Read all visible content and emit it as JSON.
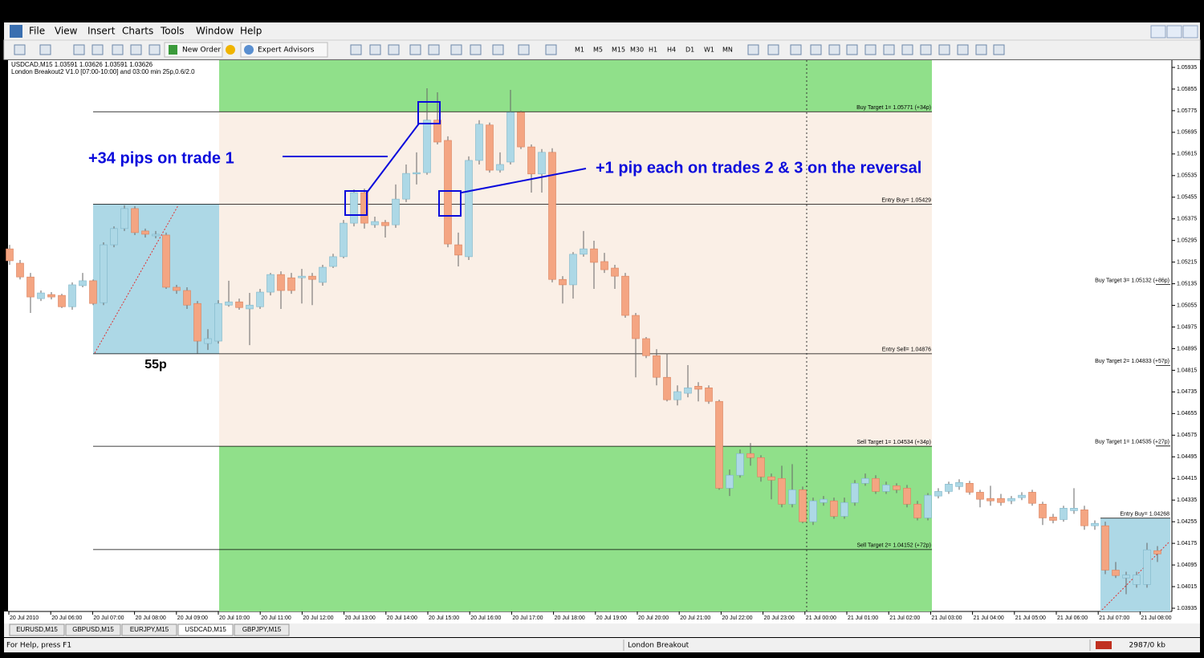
{
  "menu": [
    "File",
    "View",
    "Insert",
    "Charts",
    "Tools",
    "Window",
    "Help"
  ],
  "toolbar": {
    "new_order": "New Order",
    "expert_advisors": "Expert Advisors",
    "timeframes": [
      "M1",
      "M5",
      "M15",
      "M30",
      "H1",
      "H4",
      "D1",
      "W1",
      "MN"
    ]
  },
  "chart": {
    "info_line": "USDCAD,M15  1.03591 1.03626 1.03591 1.03626",
    "indicator_line": "London Breakout2 V1.0 [07:00-10:00] and 03:00 min 25p,0.6/2.0",
    "ylim": [
      1.03935,
      1.05935
    ],
    "yticks": [
      1.05935,
      1.05855,
      1.05775,
      1.05695,
      1.05615,
      1.05535,
      1.05455,
      1.05375,
      1.05295,
      1.05215,
      1.05135,
      1.05055,
      1.04975,
      1.04895,
      1.04815,
      1.04735,
      1.04655,
      1.04575,
      1.04495,
      1.04415,
      1.04335,
      1.04255,
      1.04175,
      1.04095,
      1.04015,
      1.03935
    ],
    "xticks": [
      "20 Jul 2010",
      "20 Jul 06:00",
      "20 Jul 07:00",
      "20 Jul 08:00",
      "20 Jul 09:00",
      "20 Jul 10:00",
      "20 Jul 11:00",
      "20 Jul 12:00",
      "20 Jul 13:00",
      "20 Jul 14:00",
      "20 Jul 15:00",
      "20 Jul 16:00",
      "20 Jul 17:00",
      "20 Jul 18:00",
      "20 Jul 19:00",
      "20 Jul 20:00",
      "20 Jul 21:00",
      "20 Jul 22:00",
      "20 Jul 23:00",
      "21 Jul 00:00",
      "21 Jul 01:00",
      "21 Jul 02:00",
      "21 Jul 03:00",
      "21 Jul 04:00",
      "21 Jul 05:00",
      "21 Jul 06:00",
      "21 Jul 07:00",
      "21 Jul 08:00"
    ],
    "levels": [
      {
        "label": "Buy Target 1= 1.05771  (+34p)",
        "price": 1.05771
      },
      {
        "label": "Entry Buy= 1.05429",
        "price": 1.05429
      },
      {
        "label": "Entry Sell= 1.04876",
        "price": 1.04876
      },
      {
        "label": "Sell Target 1= 1.04534  (+34p)",
        "price": 1.04534
      },
      {
        "label": "Sell Target 2= 1.04152  (+72p)",
        "price": 1.04152
      }
    ],
    "next_levels": [
      {
        "label": "Buy Target 3= 1.05132  (+86p)",
        "price": 1.05132
      },
      {
        "label": "Buy Target 2= 1.04833  (+57p)",
        "price": 1.04833
      },
      {
        "label": "Buy Target 1= 1.04535  (+27p)",
        "price": 1.04535
      },
      {
        "label": "Entry Buy= 1.04268",
        "price": 1.04268
      }
    ],
    "range_label": "55p",
    "annotations": [
      "+34 pips on trade 1",
      "+1 pip each on trades 2 & 3 on the reversal"
    ],
    "candles": [
      [
        1.05264,
        1.05279,
        1.05205,
        1.0522
      ],
      [
        1.05211,
        1.05223,
        1.05151,
        1.0516
      ],
      [
        1.0516,
        1.05175,
        1.05027,
        1.05086
      ],
      [
        1.0508,
        1.0511,
        1.05071,
        1.05101
      ],
      [
        1.05095,
        1.05104,
        1.05077,
        1.05086
      ],
      [
        1.05092,
        1.05098,
        1.05045,
        1.0505
      ],
      [
        1.0505,
        1.0514,
        1.05039,
        1.05131
      ],
      [
        1.05128,
        1.05175,
        1.05122,
        1.05146
      ],
      [
        1.05146,
        1.05151,
        1.05056,
        1.05062
      ],
      [
        1.05065,
        1.05288,
        1.05056,
        1.05279
      ],
      [
        1.05279,
        1.05347,
        1.0527,
        1.05339
      ],
      [
        1.05339,
        1.05425,
        1.0533,
        1.05413
      ],
      [
        1.05413,
        1.05422,
        1.05315,
        1.05324
      ],
      [
        1.0533,
        1.05339,
        1.05306,
        1.05318
      ],
      [
        1.05312,
        1.0533,
        1.05303,
        1.05318
      ],
      [
        1.05315,
        1.05324,
        1.05116,
        1.05122
      ],
      [
        1.05122,
        1.05131,
        1.05098,
        1.0511
      ],
      [
        1.0511,
        1.05122,
        1.05042,
        1.05056
      ],
      [
        1.05062,
        1.05071,
        1.04878,
        1.04923
      ],
      [
        1.04914,
        1.04967,
        1.0489,
        1.04932
      ],
      [
        1.04923,
        1.05074,
        1.04914,
        1.05062
      ],
      [
        1.05056,
        1.05146,
        1.0505,
        1.05068
      ],
      [
        1.05068,
        1.0508,
        1.05039,
        1.05047
      ],
      [
        1.05042,
        1.05101,
        1.04908,
        1.05056
      ],
      [
        1.0505,
        1.05116,
        1.05042,
        1.05104
      ],
      [
        1.05104,
        1.05175,
        1.05092,
        1.05169
      ],
      [
        1.05169,
        1.05181,
        1.05042,
        1.0511
      ],
      [
        1.05157,
        1.05175,
        1.05098,
        1.0511
      ],
      [
        1.05157,
        1.0519,
        1.05062,
        1.05163
      ],
      [
        1.05163,
        1.05175,
        1.05056,
        1.05151
      ],
      [
        1.0514,
        1.05205,
        1.05128,
        1.05196
      ],
      [
        1.05199,
        1.05246,
        1.05193,
        1.05235
      ],
      [
        1.05235,
        1.05371,
        1.05229,
        1.05359
      ],
      [
        1.05359,
        1.05484,
        1.05347,
        1.05472
      ],
      [
        1.05472,
        1.05487,
        1.05339,
        1.05359
      ],
      [
        1.05353,
        1.05383,
        1.05342,
        1.05365
      ],
      [
        1.05362,
        1.05371,
        1.05306,
        1.0535
      ],
      [
        1.05353,
        1.05502,
        1.05342,
        1.05448
      ],
      [
        1.05448,
        1.05576,
        1.05437,
        1.05543
      ],
      [
        1.05541,
        1.05621,
        1.05502,
        1.05546
      ],
      [
        1.05546,
        1.05858,
        1.05538,
        1.0574
      ],
      [
        1.0574,
        1.05843,
        1.0565,
        1.05659
      ],
      [
        1.05665,
        1.0568,
        1.0527,
        1.05282
      ],
      [
        1.05279,
        1.05324,
        1.05199,
        1.05241
      ],
      [
        1.05235,
        1.05606,
        1.05223,
        1.05591
      ],
      [
        1.05591,
        1.0574,
        1.05576,
        1.05725
      ],
      [
        1.05722,
        1.05731,
        1.05546,
        1.05555
      ],
      [
        1.05555,
        1.05621,
        1.05546,
        1.05576
      ],
      [
        1.05585,
        1.05852,
        1.05576,
        1.05769
      ],
      [
        1.05769,
        1.05775,
        1.05633,
        1.05641
      ],
      [
        1.05641,
        1.0565,
        1.05472,
        1.05541
      ],
      [
        1.05541,
        1.05633,
        1.05472,
        1.05621
      ],
      [
        1.05621,
        1.05636,
        1.0514,
        1.05151
      ],
      [
        1.05151,
        1.05163,
        1.05062,
        1.05131
      ],
      [
        1.05131,
        1.05252,
        1.0508,
        1.05244
      ],
      [
        1.05244,
        1.0533,
        1.05235,
        1.05264
      ],
      [
        1.05264,
        1.05294,
        1.05116,
        1.05214
      ],
      [
        1.05217,
        1.05249,
        1.05175,
        1.05187
      ],
      [
        1.05193,
        1.05205,
        1.05116,
        1.05163
      ],
      [
        1.05163,
        1.05175,
        1.05009,
        1.05018
      ],
      [
        1.05018,
        1.05027,
        1.04789,
        1.04932
      ],
      [
        1.04932,
        1.04938,
        1.0486,
        1.04869
      ],
      [
        1.04869,
        1.04893,
        1.04759,
        1.04789
      ],
      [
        1.04789,
        1.04878,
        1.047,
        1.04706
      ],
      [
        1.04706,
        1.04759,
        1.04685,
        1.04736
      ],
      [
        1.0473,
        1.04834,
        1.04715,
        1.0475
      ],
      [
        1.04756,
        1.04771,
        1.047,
        1.04745
      ],
      [
        1.0475,
        1.04759,
        1.04691,
        1.047
      ],
      [
        1.047,
        1.04706,
        1.04373,
        1.04379
      ],
      [
        1.04379,
        1.04448,
        1.0435,
        1.04427
      ],
      [
        1.04427,
        1.04522,
        1.04418,
        1.04507
      ],
      [
        1.04507,
        1.04546,
        1.04462,
        1.04492
      ],
      [
        1.04492,
        1.04501,
        1.04403,
        1.04421
      ],
      [
        1.04421,
        1.04433,
        1.04338,
        1.04409
      ],
      [
        1.04415,
        1.04462,
        1.04308,
        1.0432
      ],
      [
        1.0432,
        1.04468,
        1.04308,
        1.04373
      ],
      [
        1.04373,
        1.04385,
        1.04249,
        1.04255
      ],
      [
        1.04255,
        1.04344,
        1.04243,
        1.04332
      ],
      [
        1.04326,
        1.0435,
        1.04314,
        1.04338
      ],
      [
        1.04332,
        1.04344,
        1.04266,
        1.04275
      ],
      [
        1.04275,
        1.04344,
        1.04266,
        1.04326
      ],
      [
        1.04326,
        1.04409,
        1.04314,
        1.04397
      ],
      [
        1.04397,
        1.04433,
        1.04388,
        1.04415
      ],
      [
        1.04415,
        1.04427,
        1.04358,
        1.04367
      ],
      [
        1.04367,
        1.04403,
        1.04358,
        1.04391
      ],
      [
        1.04388,
        1.04397,
        1.04361,
        1.04373
      ],
      [
        1.04379,
        1.04391,
        1.04308,
        1.0432
      ],
      [
        1.0432,
        1.04332,
        1.0426,
        1.04269
      ],
      [
        1.04269,
        1.04361,
        1.0426,
        1.04353
      ],
      [
        1.0435,
        1.04379,
        1.04341,
        1.04367
      ],
      [
        1.04367,
        1.04403,
        1.04358,
        1.04394
      ],
      [
        1.04385,
        1.04412,
        1.04373,
        1.044
      ],
      [
        1.04397,
        1.04406,
        1.04355,
        1.04364
      ],
      [
        1.04364,
        1.04373,
        1.04308,
        1.04338
      ],
      [
        1.04341,
        1.04388,
        1.04314,
        1.04332
      ],
      [
        1.04341,
        1.04358,
        1.04314,
        1.04326
      ],
      [
        1.04332,
        1.0435,
        1.0432,
        1.04341
      ],
      [
        1.04344,
        1.04364,
        1.04335,
        1.04353
      ],
      [
        1.04364,
        1.04373,
        1.04314,
        1.04323
      ],
      [
        1.0432,
        1.04329,
        1.04243,
        1.04269
      ],
      [
        1.04272,
        1.04284,
        1.04249,
        1.0426
      ],
      [
        1.04263,
        1.04314,
        1.04255,
        1.04305
      ],
      [
        1.04296,
        1.04379,
        1.04284,
        1.04305
      ],
      [
        1.04299,
        1.04314,
        1.04225,
        1.0424
      ],
      [
        1.0424,
        1.0426,
        1.04225,
        1.04249
      ],
      [
        1.0424,
        1.04255,
        1.04061,
        1.04076
      ],
      [
        1.04076,
        1.04106,
        1.04047,
        1.04056
      ],
      [
        1.04047,
        1.0407,
        1.03987,
        1.04058
      ],
      [
        1.04023,
        1.0407,
        1.04011,
        1.04058
      ],
      [
        1.04023,
        1.04177,
        1.04011,
        1.04151
      ],
      [
        1.04148,
        1.04165,
        1.04106,
        1.04136
      ]
    ]
  },
  "tabs": [
    {
      "label": "EURUSD,M15",
      "active": false
    },
    {
      "label": "GBPUSD,M15",
      "active": false
    },
    {
      "label": "EURJPY,M15",
      "active": false
    },
    {
      "label": "USDCAD,M15",
      "active": true
    },
    {
      "label": "GBPJPY,M15",
      "active": false
    }
  ],
  "status": {
    "help": "For Help, press F1",
    "profile": "London Breakout",
    "traffic": "2987/0 kb"
  }
}
